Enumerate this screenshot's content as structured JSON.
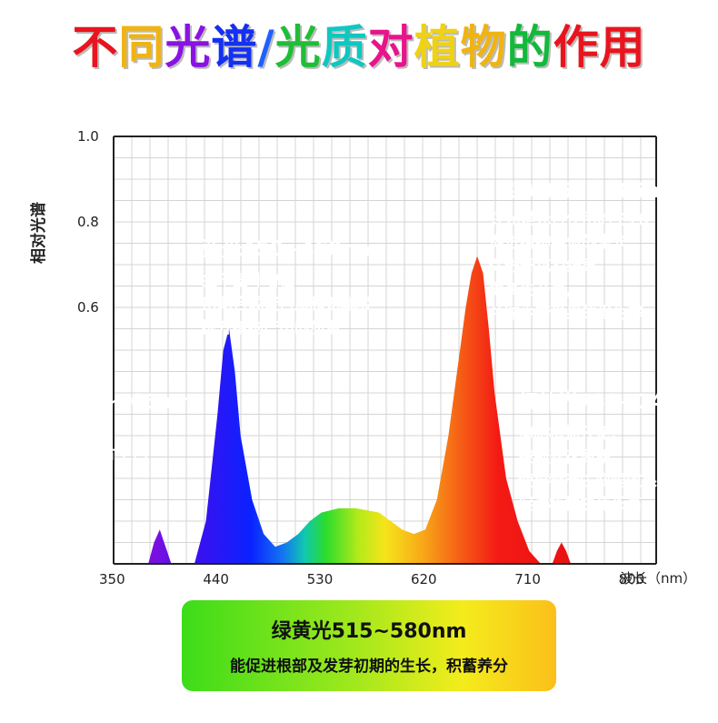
{
  "title": {
    "text": "不同光谱/光质对植物的作用",
    "colors": [
      "#e8141e",
      "#f0b412",
      "#8a12e2",
      "#1430f0",
      "#2060ff",
      "#1ebe36",
      "#0ec8c0",
      "#e8148c",
      "#f0d214",
      "#f0b412",
      "#12b93a",
      "#e8141e",
      "#e8141e"
    ]
  },
  "chart_data": {
    "type": "area",
    "xlabel": "波长（nm）",
    "ylabel": "相对光谱",
    "xlim": [
      350,
      820
    ],
    "ylim": [
      0,
      1.0
    ],
    "x_ticks": [
      350,
      440,
      530,
      620,
      710,
      800
    ],
    "y_ticks": [
      0.6,
      0.8,
      1.0
    ],
    "grid": true,
    "series": [
      {
        "x": [
          380,
          385,
          390,
          395,
          400,
          420,
          430,
          440,
          445,
          450,
          455,
          460,
          470,
          480,
          490,
          500,
          510,
          520,
          530,
          545,
          560,
          580,
          600,
          610,
          620,
          630,
          640,
          650,
          655,
          660,
          665,
          670,
          675,
          680,
          690,
          700,
          710,
          720,
          730,
          734,
          738,
          742,
          746,
          750
        ],
        "y": [
          0.0,
          0.05,
          0.08,
          0.04,
          0.0,
          0.0,
          0.1,
          0.35,
          0.5,
          0.55,
          0.45,
          0.3,
          0.15,
          0.07,
          0.04,
          0.05,
          0.07,
          0.1,
          0.12,
          0.13,
          0.13,
          0.12,
          0.08,
          0.07,
          0.08,
          0.15,
          0.3,
          0.5,
          0.6,
          0.68,
          0.72,
          0.68,
          0.55,
          0.4,
          0.2,
          0.1,
          0.03,
          0.0,
          0.0,
          0.03,
          0.05,
          0.03,
          0.0,
          0.0
        ]
      }
    ]
  },
  "callouts": {
    "blue": {
      "heading": "蓝光450~460nm",
      "lines": [
        "主干茎叶增粗",
        "帮助合成蛋白质和氨基酸",
        "提升植物产出的质量"
      ],
      "color": "#0a1ce8"
    },
    "red": {
      "heading": "红光655~665nm",
      "lines": [
        "红光是光合作用的主力,",
        "促进植物整体的生长,",
        "促进开花及结果,",
        "提高生产量,",
        "并减少畸形果的发生率。"
      ],
      "color": "#e51616"
    },
    "purple": {
      "heading": "紫光390~405nm",
      "lines": [
        "抑制徒长",
        "促使花瓣/叶片上色",
        "提升品质"
      ],
      "color": "#7a1ad0"
    },
    "infrared": {
      "heading": "红外光730~740nm",
      "lines": [
        "抑制植物开花,",
        "控制开花周期,",
        "使植物产生庇荫效果,",
        "促进植物快速长高。"
      ],
      "color": "#6e1c1c"
    },
    "green": {
      "heading": "绿黄光515~580nm",
      "lines": [
        "能促进根部及发芽初期的生长，积蓄养分"
      ]
    }
  }
}
